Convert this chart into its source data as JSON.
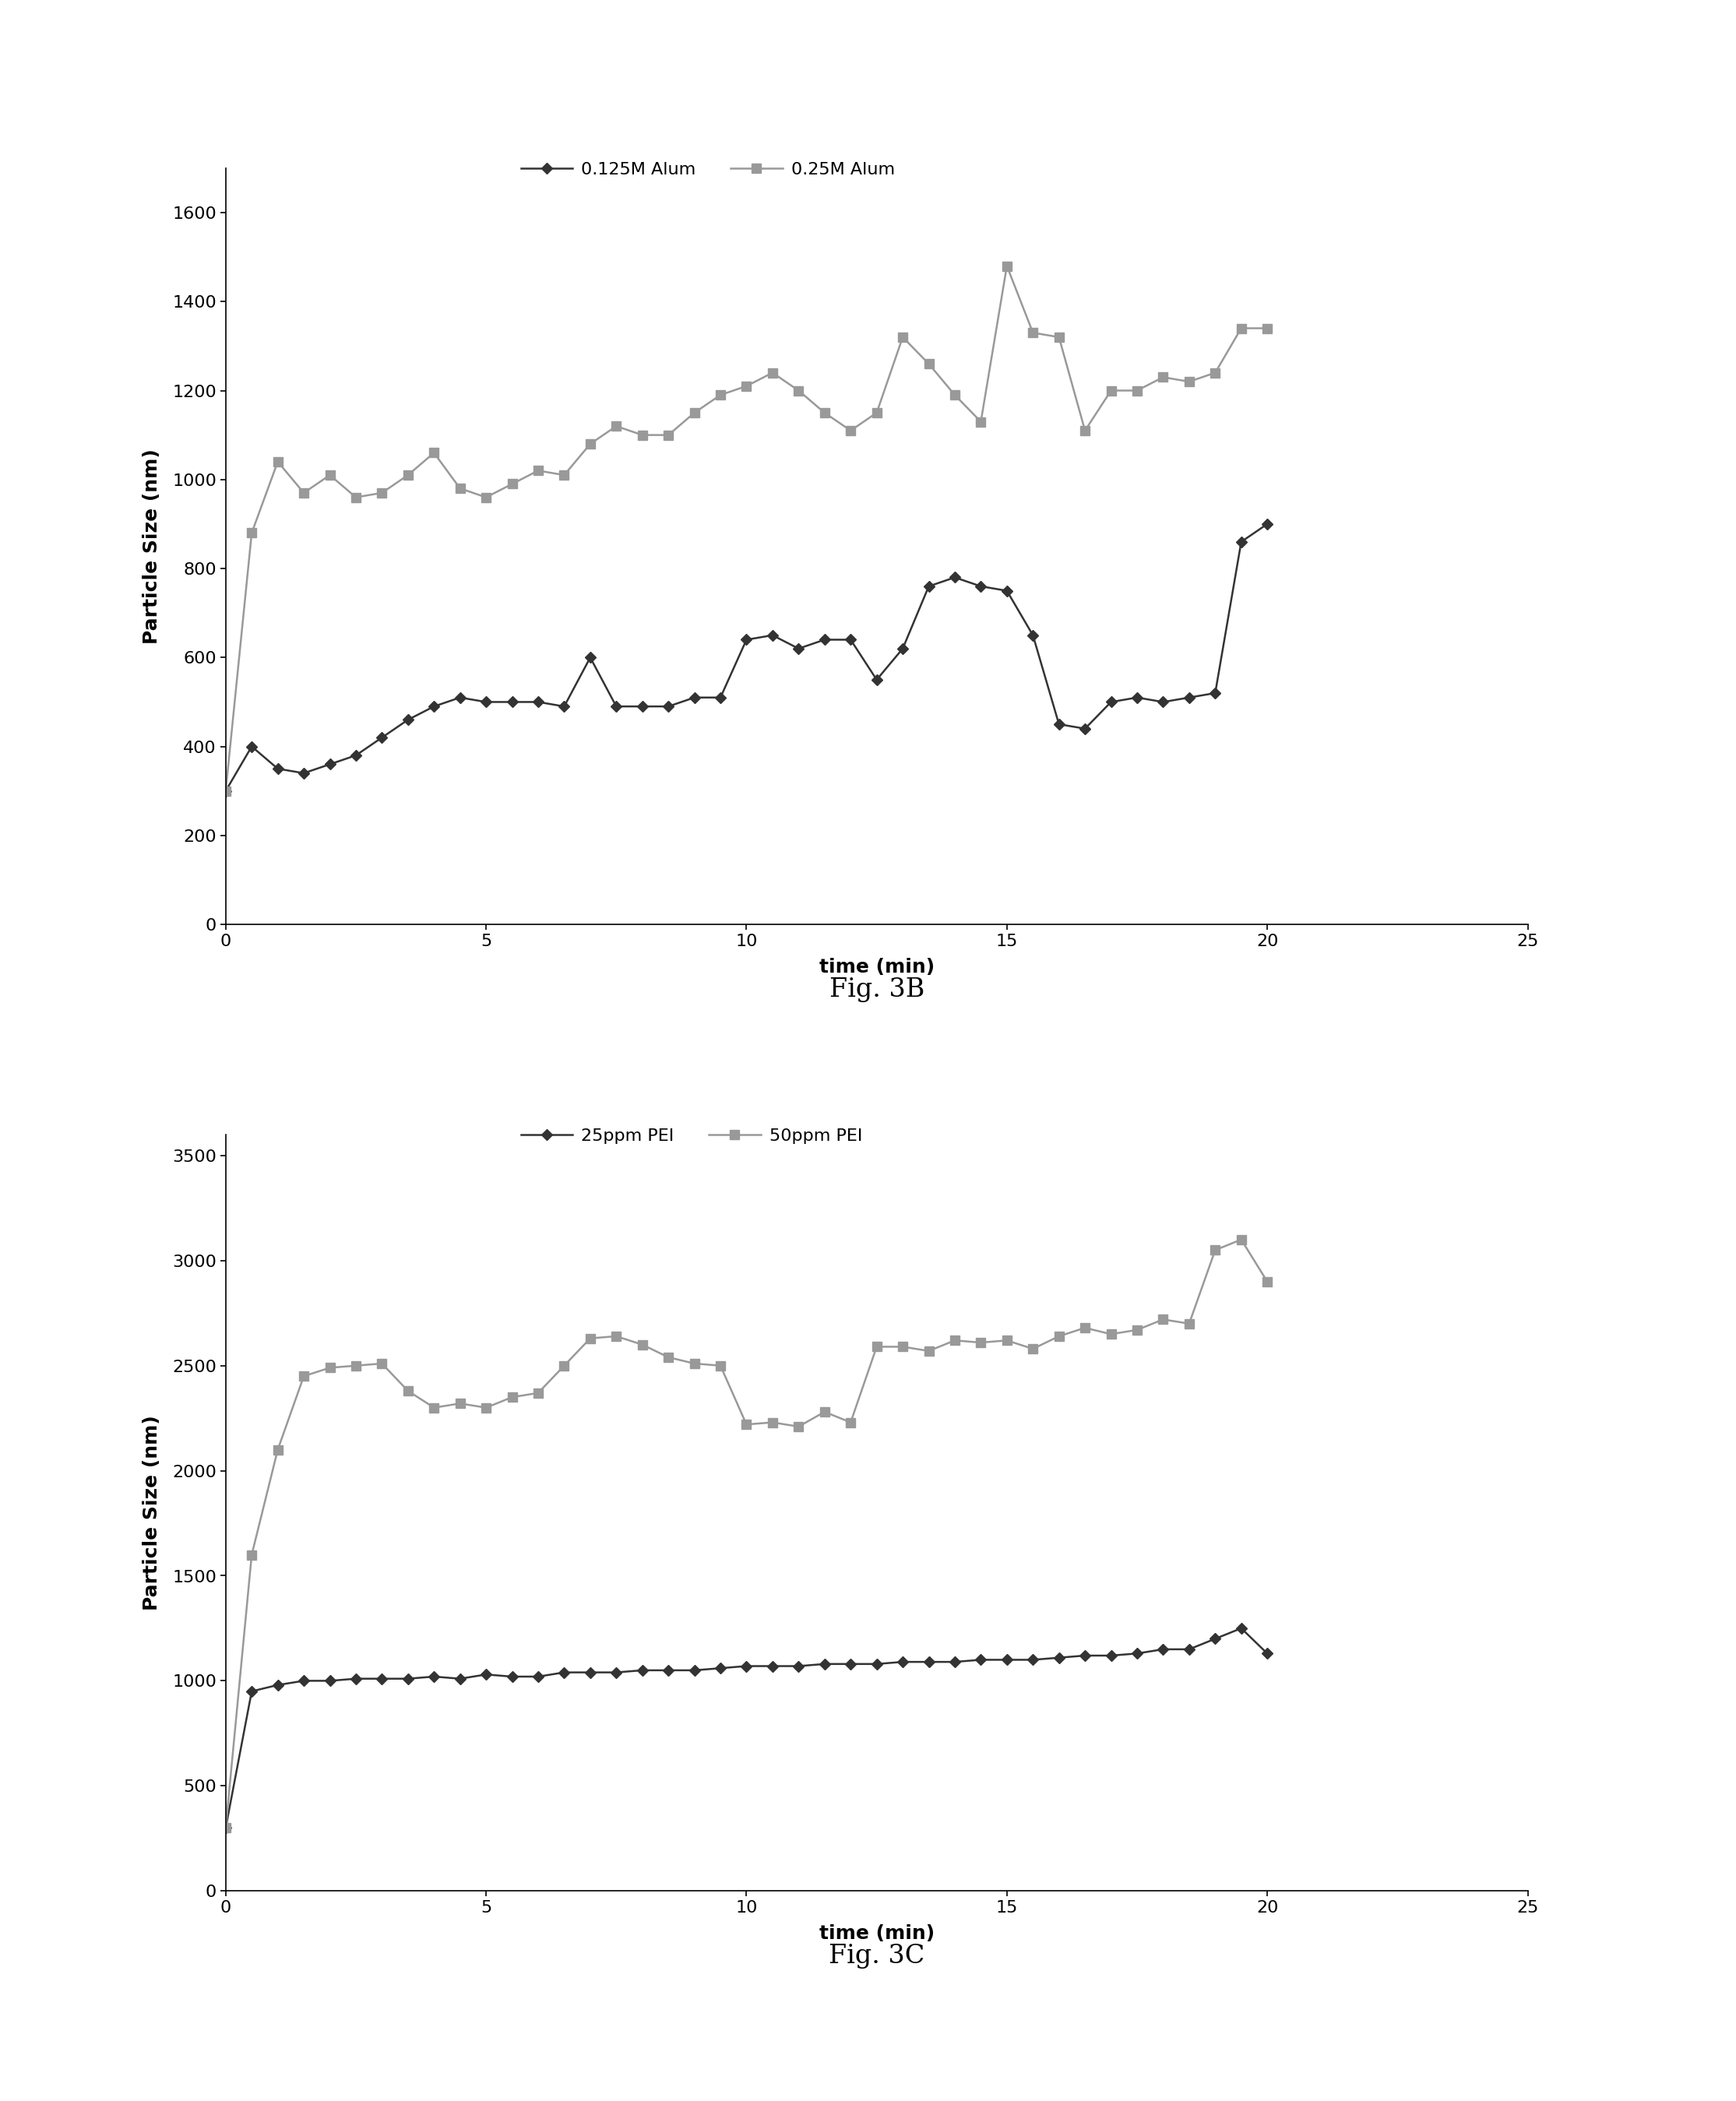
{
  "fig3b": {
    "x_025": [
      0,
      0.5,
      1,
      1.5,
      2,
      2.5,
      3,
      3.5,
      4,
      4.5,
      5,
      5.5,
      6,
      6.5,
      7,
      7.5,
      8,
      8.5,
      9,
      9.5,
      10,
      10.5,
      11,
      11.5,
      12,
      12.5,
      13,
      13.5,
      14,
      14.5,
      15,
      15.5,
      16,
      16.5,
      17,
      17.5,
      18,
      18.5,
      19,
      19.5,
      20
    ],
    "y_025": [
      300,
      880,
      1040,
      970,
      1010,
      960,
      970,
      1010,
      1060,
      980,
      960,
      990,
      1020,
      1010,
      1080,
      1120,
      1100,
      1100,
      1150,
      1190,
      1210,
      1240,
      1200,
      1150,
      1110,
      1150,
      1320,
      1260,
      1190,
      1130,
      1480,
      1330,
      1320,
      1110,
      1200,
      1200,
      1230,
      1220,
      1240,
      1340,
      1340
    ],
    "x_0125": [
      0,
      0.5,
      1,
      1.5,
      2,
      2.5,
      3,
      3.5,
      4,
      4.5,
      5,
      5.5,
      6,
      6.5,
      7,
      7.5,
      8,
      8.5,
      9,
      9.5,
      10,
      10.5,
      11,
      11.5,
      12,
      12.5,
      13,
      13.5,
      14,
      14.5,
      15,
      15.5,
      16,
      16.5,
      17,
      17.5,
      18,
      18.5,
      19,
      19.5,
      20
    ],
    "y_0125": [
      300,
      400,
      350,
      340,
      360,
      380,
      420,
      460,
      490,
      510,
      500,
      500,
      500,
      490,
      600,
      490,
      490,
      490,
      510,
      510,
      640,
      650,
      620,
      640,
      640,
      550,
      620,
      760,
      780,
      760,
      750,
      650,
      450,
      440,
      500,
      510,
      500,
      510,
      520,
      860,
      900
    ],
    "color_025": "#999999",
    "color_0125": "#333333",
    "label_025": "0.25M Alum",
    "label_0125": "0.125M Alum",
    "ylabel": "Particle Size (nm)",
    "xlabel": "time (min)",
    "title": "Fig. 3B",
    "ylim": [
      0,
      1700
    ],
    "xlim": [
      0,
      25
    ],
    "yticks": [
      0,
      200,
      400,
      600,
      800,
      1000,
      1200,
      1400,
      1600
    ],
    "xticks": [
      0,
      5,
      10,
      15,
      20,
      25
    ]
  },
  "fig3c": {
    "x_50": [
      0,
      0.5,
      1,
      1.5,
      2,
      2.5,
      3,
      3.5,
      4,
      4.5,
      5,
      5.5,
      6,
      6.5,
      7,
      7.5,
      8,
      8.5,
      9,
      9.5,
      10,
      10.5,
      11,
      11.5,
      12,
      12.5,
      13,
      13.5,
      14,
      14.5,
      15,
      15.5,
      16,
      16.5,
      17,
      17.5,
      18,
      18.5,
      19,
      19.5,
      20
    ],
    "y_50": [
      300,
      1600,
      2100,
      2450,
      2490,
      2500,
      2510,
      2380,
      2300,
      2320,
      2300,
      2350,
      2370,
      2500,
      2630,
      2640,
      2600,
      2540,
      2510,
      2500,
      2220,
      2230,
      2210,
      2280,
      2230,
      2590,
      2590,
      2570,
      2620,
      2610,
      2620,
      2580,
      2640,
      2680,
      2650,
      2670,
      2720,
      2700,
      3050,
      3100,
      2900
    ],
    "x_25": [
      0,
      0.5,
      1,
      1.5,
      2,
      2.5,
      3,
      3.5,
      4,
      4.5,
      5,
      5.5,
      6,
      6.5,
      7,
      7.5,
      8,
      8.5,
      9,
      9.5,
      10,
      10.5,
      11,
      11.5,
      12,
      12.5,
      13,
      13.5,
      14,
      14.5,
      15,
      15.5,
      16,
      16.5,
      17,
      17.5,
      18,
      18.5,
      19,
      19.5,
      20
    ],
    "y_25": [
      300,
      950,
      980,
      1000,
      1000,
      1010,
      1010,
      1010,
      1020,
      1010,
      1030,
      1020,
      1020,
      1040,
      1040,
      1040,
      1050,
      1050,
      1050,
      1060,
      1070,
      1070,
      1070,
      1080,
      1080,
      1080,
      1090,
      1090,
      1090,
      1100,
      1100,
      1100,
      1110,
      1120,
      1120,
      1130,
      1150,
      1150,
      1200,
      1250,
      1130
    ],
    "color_50": "#999999",
    "color_25": "#333333",
    "label_50": "50ppm PEI",
    "label_25": "25ppm PEI",
    "ylabel": "Particle Size (nm)",
    "xlabel": "time (min)",
    "title": "Fig. 3C",
    "ylim": [
      0,
      3600
    ],
    "xlim": [
      0,
      25
    ],
    "yticks": [
      0,
      500,
      1000,
      1500,
      2000,
      2500,
      3000,
      3500
    ],
    "xticks": [
      0,
      5,
      10,
      15,
      20,
      25
    ]
  }
}
